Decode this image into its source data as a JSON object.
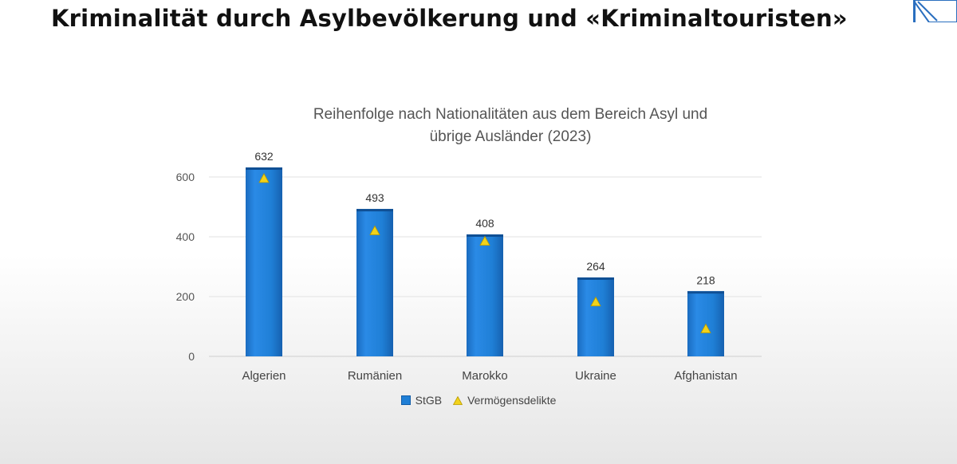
{
  "slide": {
    "title": "Kriminalität durch Asylbevölkerung und «Kriminaltouristen»"
  },
  "chart_data": {
    "type": "bar",
    "title": "Reihenfolge nach Nationalitäten aus dem Bereich Asyl und übrige Ausländer (2023)",
    "title_lines": [
      "Reihenfolge nach Nationalitäten aus dem Bereich Asyl und",
      "übrige Ausländer (2023)"
    ],
    "categories": [
      "Algerien",
      "Rumänien",
      "Marokko",
      "Ukraine",
      "Afghanistan"
    ],
    "series": [
      {
        "name": "StGB",
        "kind": "bar",
        "values": [
          632,
          493,
          408,
          264,
          218
        ],
        "color": "#1f7fd6"
      },
      {
        "name": "Vermögensdelikte",
        "kind": "marker-triangle",
        "values": [
          595,
          420,
          385,
          182,
          92
        ],
        "color": "#f2d21b"
      }
    ],
    "ylim": [
      0,
      600
    ],
    "yticks": [
      0,
      200,
      400,
      600
    ],
    "grid": true,
    "legend_position": "bottom"
  }
}
